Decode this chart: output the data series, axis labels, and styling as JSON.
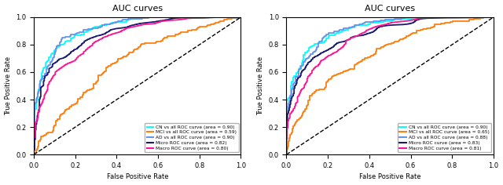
{
  "title": "AUC curves",
  "xlabel": "False Positive Rate",
  "ylabel": "True Positive Rate",
  "xlim": [
    0.0,
    1.0
  ],
  "ylim": [
    0.0,
    1.0
  ],
  "colors": {
    "CN": "#00ffff",
    "MCI": "#ff7f0e",
    "AD": "#6495ed",
    "Micro": "#191970",
    "Macro": "#ff1493"
  },
  "plot1": {
    "CN": {
      "area": 0.9,
      "seed": 10
    },
    "MCI": {
      "area": 0.59,
      "seed": 20
    },
    "AD": {
      "area": 0.9,
      "seed": 30
    },
    "Micro": {
      "area": 0.82,
      "seed": 40
    },
    "Macro": {
      "area": 0.8,
      "seed": 50
    }
  },
  "plot2": {
    "CN": {
      "area": 0.9,
      "seed": 11
    },
    "MCI": {
      "area": 0.65,
      "seed": 21
    },
    "AD": {
      "area": 0.88,
      "seed": 31
    },
    "Micro": {
      "area": 0.83,
      "seed": 41
    },
    "Macro": {
      "area": 0.81,
      "seed": 51
    }
  },
  "curve_keys": [
    "CN",
    "MCI",
    "AD",
    "Micro",
    "Macro"
  ],
  "background": "#ffffff",
  "fontsize": 6,
  "title_fontsize": 8,
  "n_steps": 300
}
